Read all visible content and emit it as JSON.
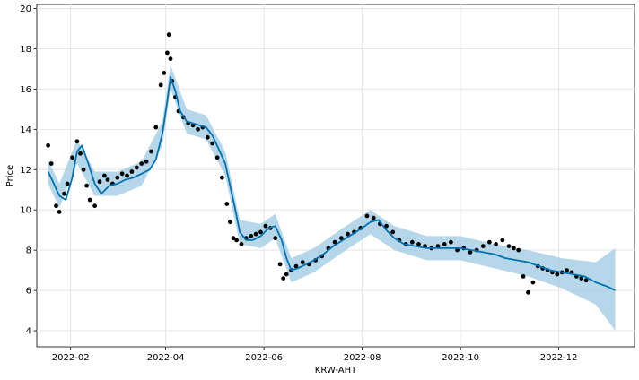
{
  "chart_data": {
    "type": "line",
    "title": "",
    "xlabel": "KRW-AHT",
    "ylabel": "Price",
    "grid": true,
    "x_ticks": [
      "2022-02",
      "2022-04",
      "2022-06",
      "2022-08",
      "2022-10",
      "2022-12"
    ],
    "y_ticks": [
      4,
      6,
      8,
      10,
      12,
      14,
      16,
      18,
      20
    ],
    "xlim": [
      "2022-01-11",
      "2023-01-17"
    ],
    "ylim": [
      3.2,
      20.2
    ],
    "colors": {
      "actual": "#000000",
      "forecast": "#0072B2",
      "interval": "#9ecae1"
    },
    "series": [
      {
        "role": "actual",
        "mark": "scatter",
        "x": [
          "2022-01-18",
          "2022-01-20",
          "2022-01-23",
          "2022-01-25",
          "2022-01-28",
          "2022-01-30",
          "2022-02-02",
          "2022-02-05",
          "2022-02-07",
          "2022-02-09",
          "2022-02-11",
          "2022-02-13",
          "2022-02-16",
          "2022-02-19",
          "2022-02-22",
          "2022-02-24",
          "2022-02-27",
          "2022-03-02",
          "2022-03-05",
          "2022-03-08",
          "2022-03-11",
          "2022-03-14",
          "2022-03-17",
          "2022-03-20",
          "2022-03-23",
          "2022-03-26",
          "2022-03-29",
          "2022-03-31",
          "2022-04-02",
          "2022-04-03",
          "2022-04-04",
          "2022-04-05",
          "2022-04-07",
          "2022-04-09",
          "2022-04-12",
          "2022-04-15",
          "2022-04-18",
          "2022-04-21",
          "2022-04-24",
          "2022-04-27",
          "2022-04-30",
          "2022-05-03",
          "2022-05-06",
          "2022-05-09",
          "2022-05-11",
          "2022-05-13",
          "2022-05-15",
          "2022-05-18",
          "2022-05-21",
          "2022-05-24",
          "2022-05-27",
          "2022-05-30",
          "2022-06-02",
          "2022-06-05",
          "2022-06-08",
          "2022-06-11",
          "2022-06-13",
          "2022-06-15",
          "2022-06-18",
          "2022-06-21",
          "2022-06-25",
          "2022-06-29",
          "2022-07-03",
          "2022-07-07",
          "2022-07-11",
          "2022-07-15",
          "2022-07-19",
          "2022-07-23",
          "2022-07-27",
          "2022-07-31",
          "2022-08-04",
          "2022-08-08",
          "2022-08-12",
          "2022-08-16",
          "2022-08-20",
          "2022-08-24",
          "2022-08-28",
          "2022-09-01",
          "2022-09-05",
          "2022-09-09",
          "2022-09-13",
          "2022-09-17",
          "2022-09-21",
          "2022-09-25",
          "2022-09-29",
          "2022-10-03",
          "2022-10-07",
          "2022-10-11",
          "2022-10-15",
          "2022-10-19",
          "2022-10-23",
          "2022-10-27",
          "2022-10-31",
          "2022-11-03",
          "2022-11-06",
          "2022-11-09",
          "2022-11-12",
          "2022-11-15",
          "2022-11-18",
          "2022-11-21",
          "2022-11-24",
          "2022-11-27",
          "2022-11-30",
          "2022-12-03",
          "2022-12-06",
          "2022-12-09",
          "2022-12-12",
          "2022-12-15",
          "2022-12-18"
        ],
        "y": [
          13.2,
          12.3,
          10.2,
          9.9,
          10.8,
          11.3,
          12.6,
          13.4,
          12.8,
          12.0,
          11.2,
          10.5,
          10.2,
          11.4,
          11.7,
          11.5,
          11.3,
          11.6,
          11.8,
          11.7,
          11.9,
          12.1,
          12.3,
          12.4,
          12.9,
          14.1,
          16.2,
          16.8,
          17.8,
          18.7,
          17.5,
          16.4,
          15.6,
          14.9,
          14.6,
          14.3,
          14.2,
          14.0,
          14.1,
          13.6,
          13.3,
          12.6,
          11.6,
          10.3,
          9.4,
          8.6,
          8.5,
          8.3,
          8.6,
          8.7,
          8.8,
          8.9,
          9.2,
          9.1,
          8.6,
          7.3,
          6.6,
          6.8,
          7.0,
          7.2,
          7.4,
          7.3,
          7.5,
          7.7,
          8.1,
          8.4,
          8.6,
          8.8,
          8.9,
          9.1,
          9.7,
          9.6,
          9.3,
          9.2,
          8.9,
          8.5,
          8.3,
          8.4,
          8.3,
          8.2,
          8.1,
          8.2,
          8.3,
          8.4,
          8.0,
          8.1,
          7.9,
          8.0,
          8.2,
          8.4,
          8.3,
          8.5,
          8.2,
          8.1,
          8.0,
          6.7,
          5.9,
          6.4,
          7.2,
          7.1,
          7.0,
          6.9,
          6.8,
          6.9,
          7.0,
          6.9,
          6.7,
          6.6,
          6.5
        ]
      },
      {
        "role": "forecast",
        "mark": "line",
        "x": [
          "2022-01-18",
          "2022-01-21",
          "2022-01-25",
          "2022-01-29",
          "2022-02-02",
          "2022-02-05",
          "2022-02-08",
          "2022-02-12",
          "2022-02-16",
          "2022-02-20",
          "2022-02-25",
          "2022-03-02",
          "2022-03-07",
          "2022-03-12",
          "2022-03-17",
          "2022-03-22",
          "2022-03-26",
          "2022-03-30",
          "2022-04-02",
          "2022-04-04",
          "2022-04-07",
          "2022-04-10",
          "2022-04-14",
          "2022-04-18",
          "2022-04-22",
          "2022-04-26",
          "2022-04-30",
          "2022-05-04",
          "2022-05-08",
          "2022-05-11",
          "2022-05-14",
          "2022-05-17",
          "2022-05-21",
          "2022-05-25",
          "2022-05-30",
          "2022-06-04",
          "2022-06-08",
          "2022-06-12",
          "2022-06-15",
          "2022-06-18",
          "2022-06-22",
          "2022-06-27",
          "2022-07-02",
          "2022-07-08",
          "2022-07-14",
          "2022-07-20",
          "2022-07-26",
          "2022-08-01",
          "2022-08-06",
          "2022-08-11",
          "2022-08-16",
          "2022-08-21",
          "2022-08-27",
          "2022-09-03",
          "2022-09-10",
          "2022-09-17",
          "2022-09-24",
          "2022-10-01",
          "2022-10-08",
          "2022-10-15",
          "2022-10-22",
          "2022-10-29",
          "2022-11-05",
          "2022-11-12",
          "2022-11-19",
          "2022-11-26",
          "2022-12-03",
          "2022-12-10",
          "2022-12-17",
          "2022-12-24",
          "2022-12-31",
          "2023-01-05"
        ],
        "y": [
          11.9,
          11.4,
          10.7,
          10.5,
          11.6,
          12.9,
          13.2,
          12.3,
          11.3,
          10.8,
          11.2,
          11.3,
          11.5,
          11.6,
          11.8,
          12.0,
          12.5,
          13.8,
          15.4,
          16.6,
          15.9,
          14.9,
          14.4,
          14.3,
          14.2,
          14.1,
          13.7,
          13.0,
          12.3,
          11.2,
          10.1,
          8.9,
          8.5,
          8.5,
          8.7,
          9.1,
          9.2,
          8.5,
          7.6,
          7.0,
          7.1,
          7.3,
          7.5,
          7.8,
          8.2,
          8.5,
          8.8,
          9.1,
          9.4,
          9.5,
          9.0,
          8.6,
          8.3,
          8.2,
          8.1,
          8.1,
          8.1,
          8.1,
          8.0,
          7.9,
          7.8,
          7.6,
          7.5,
          7.4,
          7.2,
          7.0,
          6.9,
          6.8,
          6.7,
          6.4,
          6.2,
          6.0
        ]
      }
    ],
    "interval": {
      "x": [
        "2022-01-18",
        "2022-01-25",
        "2022-02-05",
        "2022-02-16",
        "2022-03-02",
        "2022-03-17",
        "2022-03-30",
        "2022-04-04",
        "2022-04-14",
        "2022-04-26",
        "2022-05-08",
        "2022-05-17",
        "2022-05-30",
        "2022-06-08",
        "2022-06-18",
        "2022-07-02",
        "2022-07-20",
        "2022-08-06",
        "2022-08-21",
        "2022-09-10",
        "2022-10-01",
        "2022-10-22",
        "2022-11-12",
        "2022-12-03",
        "2022-12-24",
        "2023-01-05"
      ],
      "lower": [
        11.3,
        10.1,
        12.3,
        10.7,
        10.7,
        11.2,
        13.2,
        16.0,
        13.8,
        13.5,
        11.7,
        8.3,
        8.1,
        8.6,
        6.4,
        6.9,
        7.9,
        8.8,
        8.0,
        7.5,
        7.5,
        7.1,
        6.7,
        6.1,
        5.3,
        4.0
      ],
      "upper": [
        12.5,
        11.3,
        13.5,
        11.9,
        11.9,
        12.4,
        14.4,
        17.2,
        15.0,
        14.7,
        12.9,
        9.5,
        9.3,
        9.8,
        7.6,
        8.1,
        9.1,
        10.0,
        9.2,
        8.7,
        8.7,
        8.3,
        8.0,
        7.6,
        7.4,
        8.1
      ]
    }
  }
}
